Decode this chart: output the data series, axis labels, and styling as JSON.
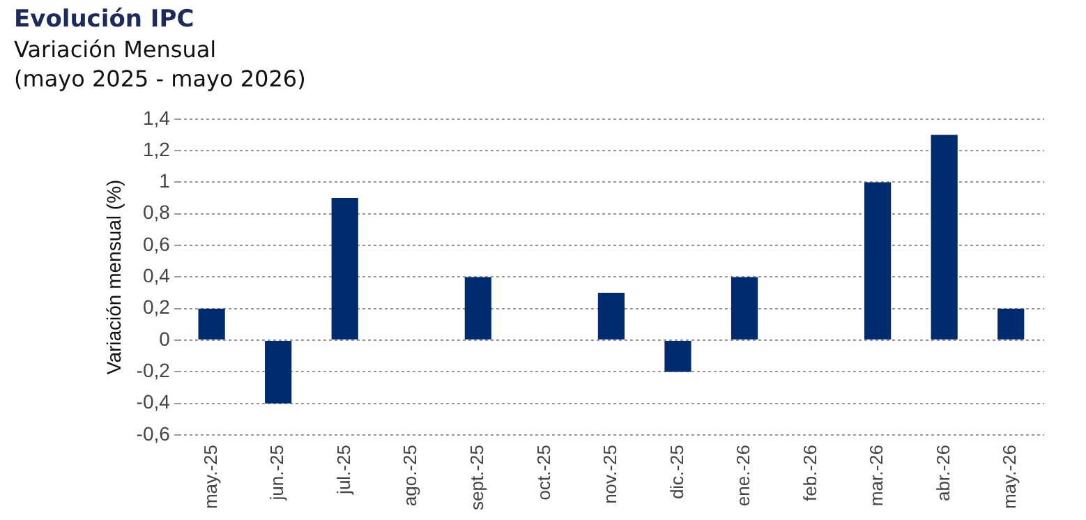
{
  "chart_data": {
    "type": "bar",
    "title": "Evolución IPC",
    "subtitle": "Variación Mensual\n(mayo 2025 - mayo 2026)",
    "ylabel": "Variación mensual (%)",
    "categories": [
      "may.-25",
      "jun.-25",
      "jul.-25",
      "ago.-25",
      "sept.-25",
      "oct.-25",
      "nov.-25",
      "dic.-25",
      "ene.-26",
      "feb.-26",
      "mar.-26",
      "abr.-26",
      "may.-26"
    ],
    "values": [
      0.2,
      -0.4,
      0.9,
      0,
      0.4,
      0,
      0.3,
      -0.2,
      0.4,
      0,
      1.0,
      1.3,
      0.2
    ],
    "color": "#002b6e",
    "ylim": [
      -0.6,
      1.4
    ],
    "yticks": [
      {
        "value": -0.6,
        "label": "-0,6"
      },
      {
        "value": -0.4,
        "label": "-0,4"
      },
      {
        "value": -0.2,
        "label": "-0,2"
      },
      0,
      {
        "value": 0.2,
        "label": "0,2"
      },
      {
        "value": 0.4,
        "label": "0,4"
      },
      {
        "value": 0.6,
        "label": "0,6"
      },
      {
        "value": 0.8,
        "label": "0,8"
      },
      1,
      {
        "value": 1.2,
        "label": "1,2"
      },
      {
        "value": 1.4,
        "label": "1,4"
      }
    ],
    "grid": "y"
  }
}
